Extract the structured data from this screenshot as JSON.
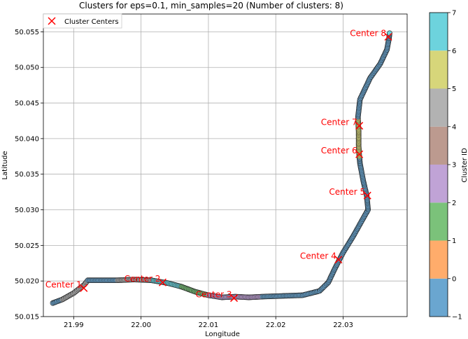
{
  "chart_data": {
    "type": "scatter",
    "title": "Clusters for eps=0.1, min_samples=20 (Number of clusters: 8)",
    "xlabel": "Longitude",
    "ylabel": "Latitude",
    "xlim": [
      21.9855,
      22.0395
    ],
    "ylim": [
      50.015,
      50.0575
    ],
    "x_ticks": [
      21.99,
      22.0,
      22.01,
      22.02,
      22.03
    ],
    "x_tick_labels": [
      "21.99",
      "22.00",
      "22.01",
      "22.02",
      "22.03"
    ],
    "y_ticks": [
      50.015,
      50.02,
      50.025,
      50.03,
      50.035,
      50.04,
      50.045,
      50.05,
      50.055
    ],
    "y_tick_labels": [
      "50.015",
      "50.020",
      "50.025",
      "50.030",
      "50.035",
      "50.040",
      "50.045",
      "50.050",
      "50.055"
    ],
    "grid": true,
    "legend": {
      "position": "top-left",
      "entries": [
        "Cluster Centers"
      ]
    },
    "colorbar": {
      "label": "Cluster ID",
      "range": [
        -1,
        7
      ],
      "tick_labels": [
        "−1",
        "0",
        "1",
        "2",
        "3",
        "4",
        "5",
        "6",
        "7"
      ],
      "colors": [
        "#6aa6d0",
        "#ffac6b",
        "#7bc27a",
        "#c0a3d6",
        "#bc9a8f",
        "#b2b2b2",
        "#d7d67a",
        "#6dd3dd"
      ]
    },
    "track": [
      {
        "x": 21.9869,
        "y": 50.0169,
        "cluster": -1
      },
      {
        "x": 21.9883,
        "y": 50.0174,
        "cluster": 4
      },
      {
        "x": 21.99,
        "y": 50.0183,
        "cluster": 4
      },
      {
        "x": 21.9916,
        "y": 50.0195,
        "cluster": 4
      },
      {
        "x": 21.9921,
        "y": 50.0201,
        "cluster": -1
      },
      {
        "x": 21.994,
        "y": 50.0201,
        "cluster": -1
      },
      {
        "x": 21.9965,
        "y": 50.0201,
        "cluster": 4
      },
      {
        "x": 21.999,
        "y": 50.0202,
        "cluster": 4
      },
      {
        "x": 22.0015,
        "y": 50.0201,
        "cluster": 6
      },
      {
        "x": 22.004,
        "y": 50.0197,
        "cluster": 6
      },
      {
        "x": 22.006,
        "y": 50.0192,
        "cluster": 1
      },
      {
        "x": 22.008,
        "y": 50.0185,
        "cluster": 1
      },
      {
        "x": 22.01,
        "y": 50.018,
        "cluster": 2
      },
      {
        "x": 22.012,
        "y": 50.0177,
        "cluster": 2
      },
      {
        "x": 22.014,
        "y": 50.0178,
        "cluster": 2
      },
      {
        "x": 22.016,
        "y": 50.0177,
        "cluster": 2
      },
      {
        "x": 22.018,
        "y": 50.0178,
        "cluster": -1
      },
      {
        "x": 22.021,
        "y": 50.0179,
        "cluster": -1
      },
      {
        "x": 22.024,
        "y": 50.018,
        "cluster": -1
      },
      {
        "x": 22.0265,
        "y": 50.0186,
        "cluster": -1
      },
      {
        "x": 22.0278,
        "y": 50.0198,
        "cluster": -1
      },
      {
        "x": 22.0288,
        "y": 50.0218,
        "cluster": -1
      },
      {
        "x": 22.03,
        "y": 50.024,
        "cluster": -1
      },
      {
        "x": 22.0315,
        "y": 50.0263,
        "cluster": -1
      },
      {
        "x": 22.0328,
        "y": 50.0285,
        "cluster": -1
      },
      {
        "x": 22.0337,
        "y": 50.03,
        "cluster": -1
      },
      {
        "x": 22.0335,
        "y": 50.032,
        "cluster": -1
      },
      {
        "x": 22.033,
        "y": 50.034,
        "cluster": -1
      },
      {
        "x": 22.0325,
        "y": 50.0365,
        "cluster": -1
      },
      {
        "x": 22.0324,
        "y": 50.0375,
        "cluster": 5
      },
      {
        "x": 22.0323,
        "y": 50.039,
        "cluster": 5
      },
      {
        "x": 22.0323,
        "y": 50.041,
        "cluster": 5
      },
      {
        "x": 22.0322,
        "y": 50.043,
        "cluster": -1
      },
      {
        "x": 22.0325,
        "y": 50.0455,
        "cluster": -1
      },
      {
        "x": 22.034,
        "y": 50.0485,
        "cluster": -1
      },
      {
        "x": 22.0355,
        "y": 50.0505,
        "cluster": -1
      },
      {
        "x": 22.0365,
        "y": 50.0525,
        "cluster": -1
      },
      {
        "x": 22.0368,
        "y": 50.054,
        "cluster": -1
      },
      {
        "x": 22.0369,
        "y": 50.0548,
        "cluster": 7
      }
    ],
    "centers": [
      {
        "label": "Center 1",
        "x": 21.9915,
        "y": 50.019
      },
      {
        "label": "Center 2",
        "x": 22.0032,
        "y": 50.0198
      },
      {
        "label": "Center 3",
        "x": 22.0138,
        "y": 50.0176
      },
      {
        "label": "Center 4",
        "x": 22.0293,
        "y": 50.023
      },
      {
        "label": "Center 5",
        "x": 22.0336,
        "y": 50.032
      },
      {
        "label": "Center 6",
        "x": 22.0324,
        "y": 50.0378
      },
      {
        "label": "Center 7",
        "x": 22.0324,
        "y": 50.0418
      },
      {
        "label": "Center 8",
        "x": 22.0367,
        "y": 50.0543
      }
    ]
  }
}
